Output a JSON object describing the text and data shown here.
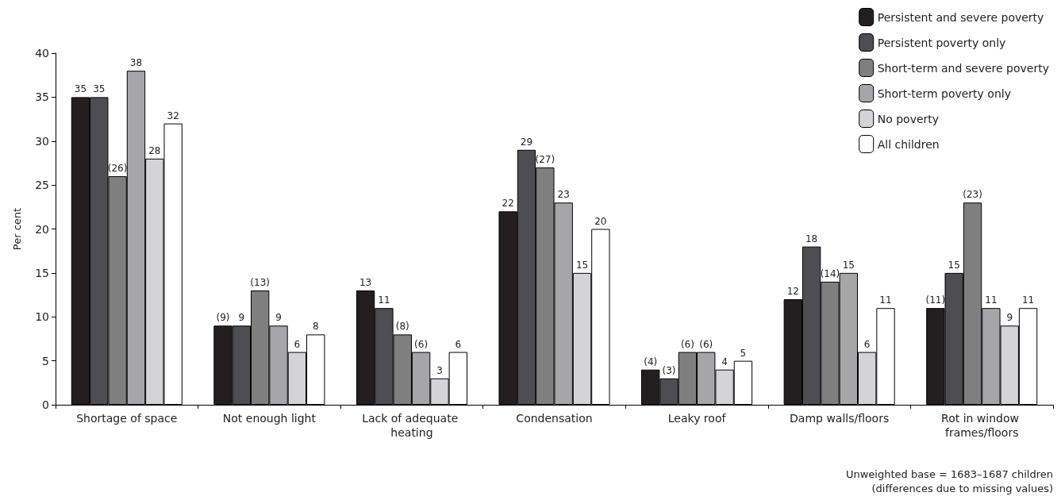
{
  "chart_data": {
    "type": "bar",
    "ylabel": "Per cent",
    "categories": [
      "Shortage of space",
      "Not enough light",
      "Lack of adequate heating",
      "Condensation",
      "Leaky roof",
      "Damp walls/floors",
      "Rot in window frames/floors"
    ],
    "series": [
      {
        "name": "Persistent and severe poverty",
        "color": "#231f20",
        "values": [
          35,
          9,
          13,
          22,
          4,
          12,
          11
        ],
        "value_labels": [
          "35",
          "(9)",
          "13",
          "22",
          "(4)",
          "12",
          "(11)"
        ]
      },
      {
        "name": "Persistent poverty only",
        "color": "#4d4d52",
        "values": [
          35,
          9,
          11,
          29,
          3,
          18,
          15
        ],
        "value_labels": [
          "35",
          "9",
          "11",
          "29",
          "(3)",
          "18",
          "15"
        ]
      },
      {
        "name": "Short-term and severe poverty",
        "color": "#7f7f80",
        "values": [
          26,
          13,
          8,
          27,
          6,
          14,
          23
        ],
        "value_labels": [
          "(26)",
          "(13)",
          "(8)",
          "(27)",
          "(6)",
          "(14)",
          "(23)"
        ]
      },
      {
        "name": "Short-term poverty only",
        "color": "#a6a6a8",
        "values": [
          38,
          9,
          6,
          23,
          6,
          15,
          11
        ],
        "value_labels": [
          "38",
          "9",
          "(6)",
          "23",
          "(6)",
          "15",
          "11"
        ]
      },
      {
        "name": "No poverty",
        "color": "#d4d4d6",
        "values": [
          28,
          6,
          3,
          15,
          4,
          6,
          9
        ],
        "value_labels": [
          "28",
          "6",
          "3",
          "15",
          "4",
          "6",
          "9"
        ]
      },
      {
        "name": "All children",
        "color": "#ffffff",
        "values": [
          32,
          8,
          6,
          20,
          5,
          11,
          11
        ],
        "value_labels": [
          "32",
          "8",
          "6",
          "20",
          "5",
          "11",
          "11"
        ]
      }
    ],
    "ylim": [
      0,
      40
    ],
    "yticks": [
      0,
      5,
      10,
      15,
      20,
      25,
      30,
      35,
      40
    ],
    "grid": false,
    "legend": "top right",
    "annotations": [
      "Unweighted base = 1683–1687 children",
      "(differences due to missing values)"
    ]
  }
}
